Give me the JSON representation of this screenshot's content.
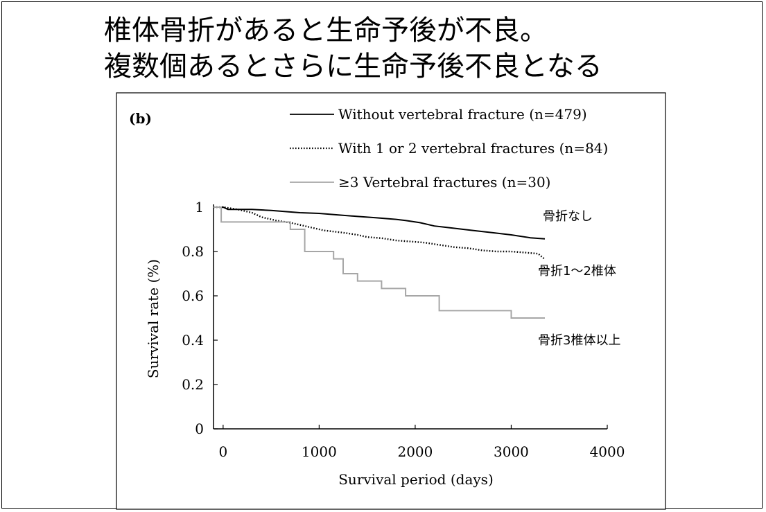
{
  "title_lines": [
    "椎体骨折があると生命予後が不良。",
    "複数個あるとさらに生命予後不良となる"
  ],
  "chart_data": {
    "type": "line",
    "panel_label": "(b)",
    "xlabel": "Survival period (days)",
    "ylabel": "Survival rate (%)",
    "xlim": [
      -100,
      4000
    ],
    "ylim": [
      0,
      1
    ],
    "x_ticks": [
      "0",
      "1000",
      "2000",
      "3000",
      "4000"
    ],
    "y_ticks": [
      "0",
      "0.2",
      "0.4",
      "0.6",
      "0.8",
      "1"
    ],
    "series": [
      {
        "name": "Without vertebral fracture (n=479)",
        "annotation": "骨折なし",
        "color": "#000000",
        "style": "solid",
        "points": [
          [
            -100,
            1.0
          ],
          [
            0,
            1.0
          ],
          [
            50,
            0.99
          ],
          [
            300,
            0.99
          ],
          [
            500,
            0.985
          ],
          [
            650,
            0.98
          ],
          [
            800,
            0.975
          ],
          [
            1000,
            0.972
          ],
          [
            1200,
            0.965
          ],
          [
            1400,
            0.958
          ],
          [
            1600,
            0.952
          ],
          [
            1800,
            0.945
          ],
          [
            1900,
            0.94
          ],
          [
            2050,
            0.93
          ],
          [
            2200,
            0.915
          ],
          [
            2400,
            0.905
          ],
          [
            2600,
            0.895
          ],
          [
            2800,
            0.885
          ],
          [
            3000,
            0.875
          ],
          [
            3200,
            0.862
          ],
          [
            3350,
            0.857
          ]
        ]
      },
      {
        "name": "With 1 or 2 vertebral fractures (n=84)",
        "annotation": "骨折1～2椎体",
        "color": "#000000",
        "style": "dotted",
        "points": [
          [
            -100,
            1.0
          ],
          [
            0,
            1.0
          ],
          [
            150,
            0.99
          ],
          [
            300,
            0.975
          ],
          [
            400,
            0.955
          ],
          [
            550,
            0.94
          ],
          [
            700,
            0.93
          ],
          [
            850,
            0.915
          ],
          [
            950,
            0.905
          ],
          [
            1050,
            0.895
          ],
          [
            1150,
            0.89
          ],
          [
            1250,
            0.885
          ],
          [
            1400,
            0.875
          ],
          [
            1500,
            0.865
          ],
          [
            1650,
            0.86
          ],
          [
            1800,
            0.85
          ],
          [
            1950,
            0.845
          ],
          [
            2100,
            0.84
          ],
          [
            2250,
            0.83
          ],
          [
            2400,
            0.82
          ],
          [
            2550,
            0.815
          ],
          [
            2700,
            0.805
          ],
          [
            2850,
            0.8
          ],
          [
            3000,
            0.8
          ],
          [
            3150,
            0.795
          ],
          [
            3280,
            0.79
          ],
          [
            3350,
            0.765
          ]
        ]
      },
      {
        "name": "≥3 Vertebral fractures (n=30)",
        "annotation": "骨折3椎体以上",
        "color": "#a6a6a6",
        "style": "solid",
        "step": true,
        "points": [
          [
            -100,
            1.0
          ],
          [
            -20,
            1.0
          ],
          [
            -20,
            0.933
          ],
          [
            700,
            0.933
          ],
          [
            700,
            0.9
          ],
          [
            850,
            0.9
          ],
          [
            850,
            0.8
          ],
          [
            1150,
            0.8
          ],
          [
            1150,
            0.767
          ],
          [
            1250,
            0.767
          ],
          [
            1250,
            0.7
          ],
          [
            1400,
            0.7
          ],
          [
            1400,
            0.667
          ],
          [
            1650,
            0.667
          ],
          [
            1650,
            0.633
          ],
          [
            1900,
            0.633
          ],
          [
            1900,
            0.6
          ],
          [
            2250,
            0.6
          ],
          [
            2250,
            0.533
          ],
          [
            3000,
            0.533
          ],
          [
            3000,
            0.5
          ],
          [
            3350,
            0.5
          ]
        ]
      }
    ]
  }
}
